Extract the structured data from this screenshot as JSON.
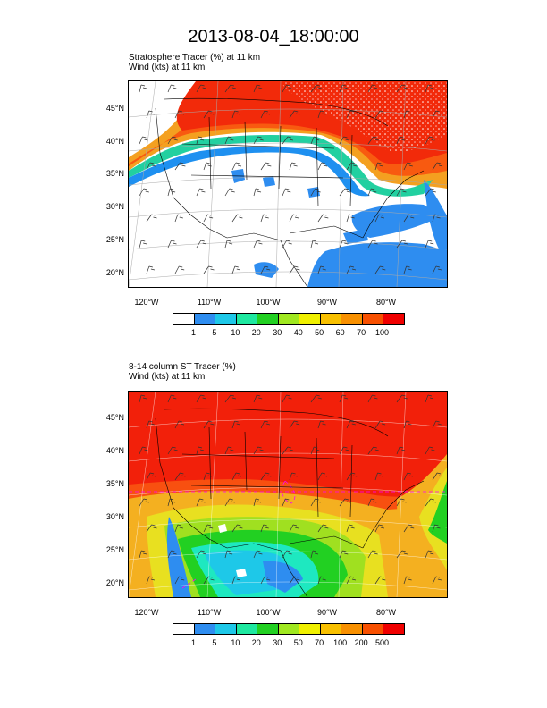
{
  "title": "2013-08-04_18:00:00",
  "panels": [
    {
      "id": "top",
      "subtitle_line1": "Stratosphere Tracer   (%)    at   11 km",
      "subtitle_line2": "Wind   (kts)    at   11 km",
      "lat_labels": [
        "45°N",
        "40°N",
        "35°N",
        "30°N",
        "25°N",
        "20°N"
      ],
      "lon_labels": [
        "120°W",
        "110°W",
        "100°W",
        "90°W",
        "80°W"
      ],
      "colorbar": {
        "labels": [
          "1",
          "5",
          "10",
          "20",
          "30",
          "40",
          "50",
          "60",
          "70",
          "100"
        ],
        "colors": [
          "#ffffff",
          "#2e8df0",
          "#1ec8e8",
          "#1ee8a0",
          "#22d022",
          "#a0e820",
          "#f0f000",
          "#f8c000",
          "#f89000",
          "#f85000",
          "#f00000"
        ]
      }
    },
    {
      "id": "bottom",
      "subtitle_line1": "8-14 column ST Tracer   (%)",
      "subtitle_line2": "Wind   (kts)    at   11 km",
      "lat_labels": [
        "45°N",
        "40°N",
        "35°N",
        "30°N",
        "25°N",
        "20°N"
      ],
      "lon_labels": [
        "120°W",
        "110°W",
        "100°W",
        "90°W",
        "80°W"
      ],
      "colorbar": {
        "labels": [
          "1",
          "5",
          "10",
          "20",
          "30",
          "50",
          "70",
          "100",
          "200",
          "500"
        ],
        "colors": [
          "#ffffff",
          "#2e8df0",
          "#1ec8e8",
          "#1ee8a0",
          "#22d022",
          "#a0e820",
          "#f0f000",
          "#f8c000",
          "#f89000",
          "#f85000",
          "#f00000"
        ]
      }
    }
  ]
}
